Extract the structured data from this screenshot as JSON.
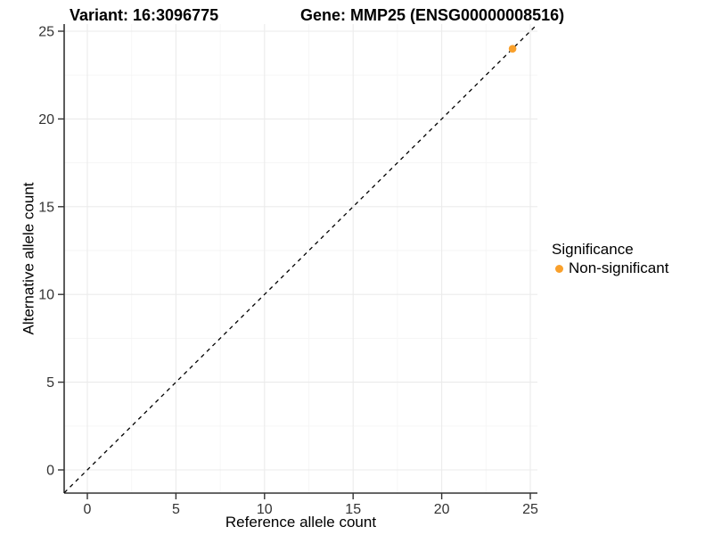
{
  "chart_data": {
    "type": "scatter",
    "title_variant": "Variant: 16:3096775",
    "title_gene": "Gene: MMP25 (ENSG00000008516)",
    "xlabel": "Reference allele count",
    "ylabel": "Alternative allele count",
    "xticks": [
      0,
      5,
      10,
      15,
      20,
      25
    ],
    "yticks": [
      0,
      5,
      10,
      15,
      20,
      25
    ],
    "xlim": [
      -1.3,
      25.4
    ],
    "ylim": [
      -1.3,
      25.4
    ],
    "grid": {
      "major": true,
      "minor": true
    },
    "points": [
      {
        "x": 24,
        "y": 24,
        "significance": "Non-significant"
      }
    ],
    "identity_line": {
      "style": "dashed",
      "from": -1.3,
      "to": 25.4
    },
    "legend": {
      "title": "Significance",
      "position": "right",
      "entries": [
        {
          "label": "Non-significant",
          "color": "#F9A02B"
        }
      ]
    },
    "colors": {
      "point": "#F9A02B",
      "grid_major": "#EBEBEB",
      "grid_minor": "#F5F5F5",
      "axis": "#333333",
      "tick_text": "#333333",
      "identity_line": "#000000",
      "background": "#FFFFFF"
    }
  }
}
